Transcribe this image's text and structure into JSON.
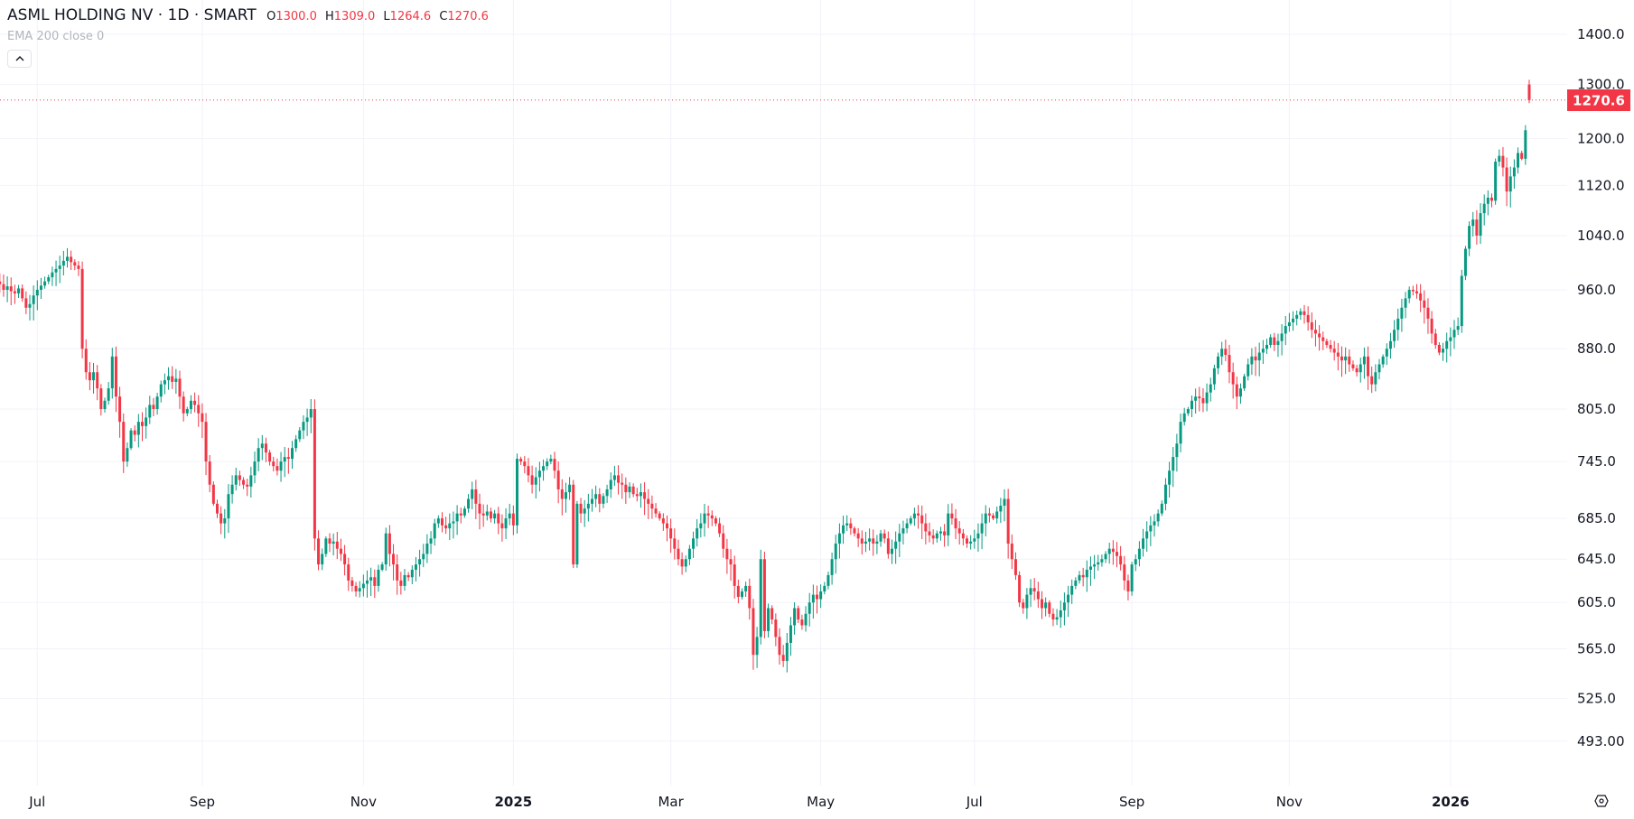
{
  "header": {
    "title": "ASML HOLDING NV · 1D · SMART",
    "ohlc": [
      {
        "key": "O",
        "value": "1300.0"
      },
      {
        "key": "H",
        "value": "1309.0"
      },
      {
        "key": "L",
        "value": "1264.6"
      },
      {
        "key": "C",
        "value": "1270.6"
      }
    ],
    "indicator": "EMA 200 close 0",
    "collapse_icon": "chevron-up-icon"
  },
  "colors": {
    "up": "#089981",
    "down": "#F23645",
    "grid": "#f0f3fa",
    "text": "#131722"
  },
  "chart_data": {
    "type": "candlestick",
    "title": "ASML HOLDING NV · 1D · SMART",
    "yscale": "log",
    "ylim": [
      470,
      1420
    ],
    "grid": true,
    "y_ticks": [
      "1400.0",
      "1300.0",
      "1200.0",
      "1120.0",
      "1040.0",
      "960.0",
      "880.0",
      "805.0",
      "745.0",
      "685.0",
      "645.0",
      "605.0",
      "565.0",
      "525.0",
      "493.00"
    ],
    "x_ticks": [
      {
        "label": "Jul",
        "index": 12,
        "bold": false
      },
      {
        "label": "Sep",
        "index": 56,
        "bold": false
      },
      {
        "label": "Nov",
        "index": 99,
        "bold": false
      },
      {
        "label": "2025",
        "index": 139,
        "bold": true
      },
      {
        "label": "Mar",
        "index": 181,
        "bold": false
      },
      {
        "label": "May",
        "index": 221,
        "bold": false
      },
      {
        "label": "Jul",
        "index": 262,
        "bold": false
      },
      {
        "label": "Sep",
        "index": 304,
        "bold": false
      },
      {
        "label": "Nov",
        "index": 346,
        "bold": false
      },
      {
        "label": "2026",
        "index": 389,
        "bold": true
      }
    ],
    "last_price": {
      "label": "1270.6",
      "value": 1270.6
    },
    "first_open": 985,
    "last_candle": {
      "open": 1300.0,
      "high": 1309.0,
      "low": 1264.6,
      "close": 1270.6
    },
    "closes": [
      980,
      972,
      968,
      960,
      965,
      958,
      955,
      962,
      948,
      935,
      940,
      952,
      960,
      966,
      972,
      978,
      985,
      990,
      995,
      1002,
      1008,
      1000,
      995,
      990,
      880,
      850,
      840,
      850,
      830,
      805,
      815,
      830,
      870,
      820,
      790,
      745,
      760,
      780,
      775,
      790,
      785,
      795,
      810,
      805,
      820,
      835,
      840,
      845,
      838,
      842,
      820,
      800,
      805,
      815,
      810,
      800,
      790,
      745,
      720,
      700,
      690,
      680,
      685,
      710,
      720,
      730,
      725,
      720,
      718,
      730,
      745,
      760,
      765,
      755,
      745,
      740,
      735,
      745,
      750,
      748,
      760,
      770,
      780,
      790,
      795,
      805,
      665,
      640,
      650,
      665,
      660,
      662,
      655,
      650,
      640,
      625,
      620,
      615,
      618,
      622,
      625,
      628,
      620,
      635,
      640,
      670,
      650,
      640,
      625,
      620,
      630,
      628,
      635,
      640,
      645,
      650,
      660,
      665,
      680,
      685,
      678,
      675,
      680,
      682,
      690,
      688,
      695,
      705,
      715,
      700,
      690,
      688,
      692,
      685,
      690,
      680,
      675,
      685,
      690,
      678,
      748,
      745,
      740,
      730,
      720,
      728,
      735,
      740,
      745,
      748,
      735,
      715,
      705,
      712,
      720,
      640,
      700,
      690,
      695,
      700,
      705,
      710,
      700,
      708,
      715,
      725,
      730,
      722,
      720,
      712,
      718,
      710,
      708,
      712,
      705,
      700,
      695,
      690,
      685,
      680,
      675,
      665,
      655,
      645,
      638,
      645,
      655,
      665,
      675,
      680,
      690,
      688,
      685,
      680,
      670,
      655,
      645,
      640,
      620,
      610,
      615,
      620,
      600,
      560,
      575,
      645,
      580,
      600,
      590,
      575,
      560,
      555,
      570,
      585,
      600,
      590,
      585,
      595,
      605,
      612,
      608,
      615,
      620,
      630,
      645,
      660,
      670,
      678,
      680,
      675,
      670,
      665,
      660,
      662,
      665,
      660,
      662,
      670,
      665,
      650,
      655,
      662,
      670,
      675,
      680,
      685,
      690,
      688,
      680,
      672,
      668,
      665,
      670,
      672,
      668,
      690,
      685,
      675,
      670,
      665,
      660,
      662,
      665,
      670,
      680,
      690,
      688,
      685,
      692,
      698,
      705,
      660,
      645,
      630,
      605,
      600,
      612,
      618,
      615,
      608,
      600,
      605,
      595,
      590,
      592,
      598,
      605,
      612,
      620,
      625,
      630,
      628,
      635,
      638,
      640,
      642,
      645,
      650,
      655,
      652,
      648,
      640,
      625,
      615,
      640,
      645,
      655,
      665,
      672,
      678,
      682,
      690,
      700,
      720,
      735,
      750,
      765,
      790,
      800,
      805,
      815,
      820,
      818,
      812,
      825,
      835,
      855,
      870,
      880,
      872,
      850,
      835,
      820,
      830,
      845,
      860,
      870,
      865,
      875,
      880,
      885,
      895,
      885,
      890,
      900,
      910,
      915,
      920,
      925,
      930,
      925,
      915,
      905,
      900,
      895,
      890,
      885,
      880,
      875,
      870,
      865,
      870,
      860,
      855,
      850,
      860,
      870,
      845,
      835,
      850,
      860,
      870,
      880,
      890,
      905,
      920,
      935,
      948,
      960,
      958,
      955,
      945,
      935,
      920,
      900,
      885,
      875,
      880,
      890,
      895,
      905,
      910,
      980,
      1020,
      1055,
      1065,
      1040,
      1075,
      1090,
      1100,
      1095,
      1160,
      1170,
      1150,
      1110,
      1135,
      1150,
      1175,
      1165,
      1215,
      1270.6
    ]
  },
  "footer": {
    "settings_icon": "settings-gear-icon"
  }
}
